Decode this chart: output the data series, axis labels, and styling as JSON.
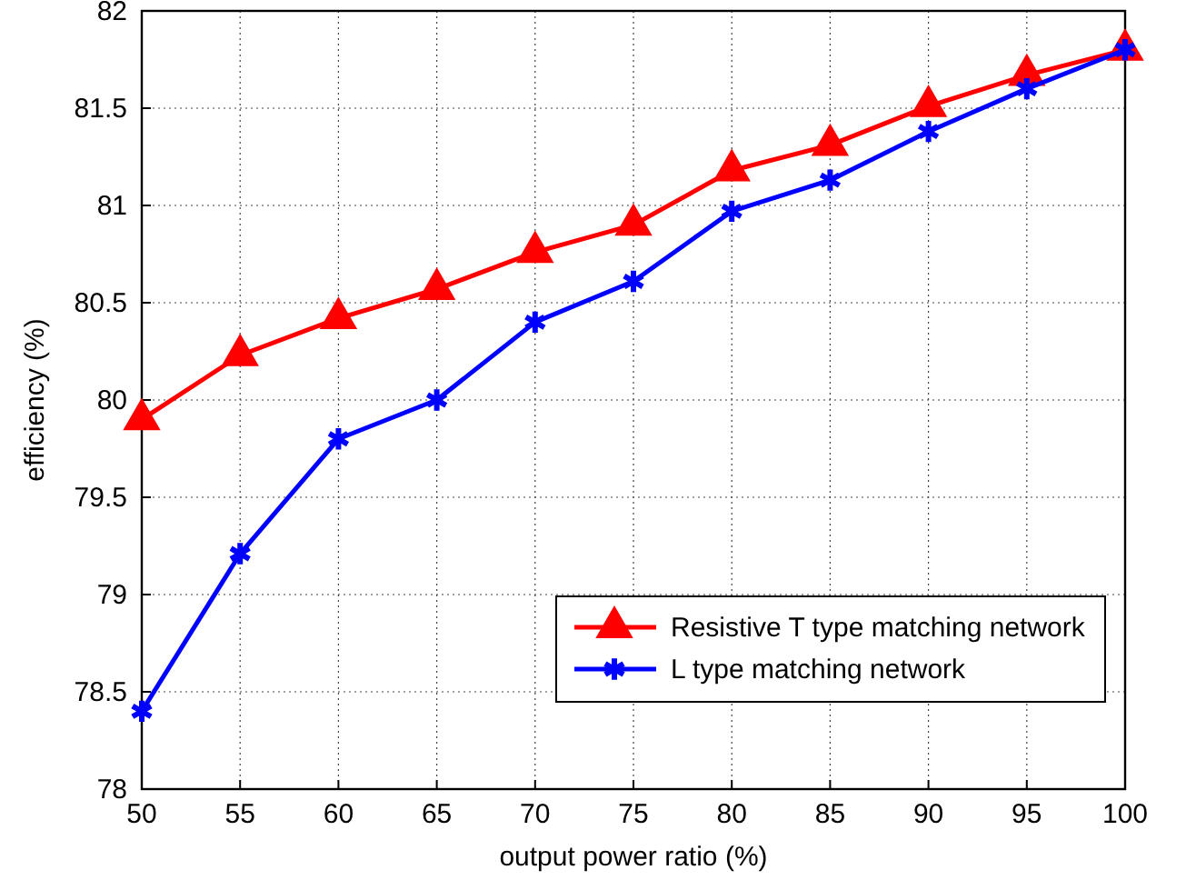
{
  "chart_data": {
    "type": "line",
    "xlabel": "output power ratio (%)",
    "ylabel": "efficiency (%)",
    "x": [
      50,
      55,
      60,
      65,
      70,
      75,
      80,
      85,
      90,
      95,
      100
    ],
    "series": [
      {
        "name": "Resistive T type matching network",
        "color": "#ff0000",
        "marker": "triangle",
        "values": [
          79.9,
          80.23,
          80.42,
          80.57,
          80.76,
          80.9,
          81.18,
          81.31,
          81.51,
          81.67,
          81.8
        ]
      },
      {
        "name": "L type matching network",
        "color": "#0000ff",
        "marker": "cross",
        "values": [
          78.4,
          79.21,
          79.8,
          80.0,
          80.4,
          80.61,
          80.97,
          81.13,
          81.38,
          81.6,
          81.8
        ]
      }
    ],
    "xlim": [
      50,
      100
    ],
    "xticks": [
      50,
      55,
      60,
      65,
      70,
      75,
      80,
      85,
      90,
      95,
      100
    ],
    "ylim": [
      78,
      82
    ],
    "yticks": [
      78,
      78.5,
      79,
      79.5,
      80,
      80.5,
      81,
      81.5,
      82
    ],
    "grid": true,
    "legend": "bottom right",
    "line_style": "solid"
  }
}
